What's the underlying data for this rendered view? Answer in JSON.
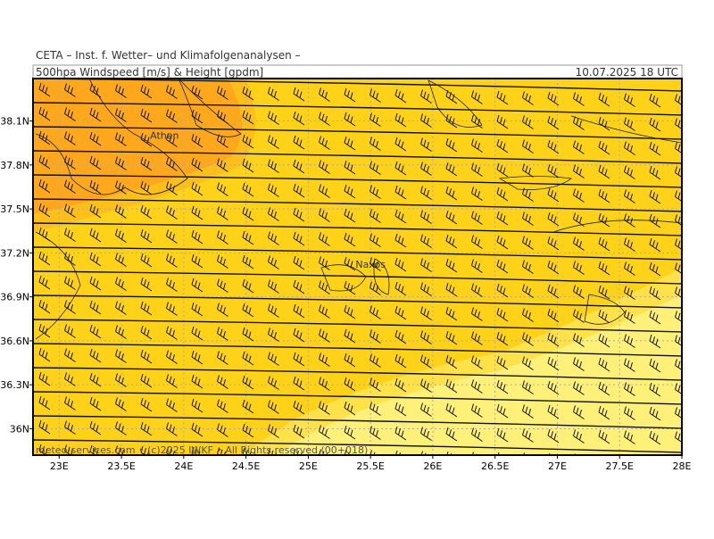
{
  "header": {
    "institute": "CETA – Inst. f. Wetter– und Klimafolgenanalysen –",
    "product": "500hpa Windspeed [m/s] & Height [gpdm]",
    "valid": "10.07.2025 18 UTC"
  },
  "map": {
    "lon_range": [
      22.79,
      28
    ],
    "lat_range": [
      35.82,
      38.39
    ],
    "lat_ticks": [
      {
        "value": 38.1,
        "label": "38.1N"
      },
      {
        "value": 37.8,
        "label": "37.8N"
      },
      {
        "value": 37.5,
        "label": "37.5N"
      },
      {
        "value": 37.2,
        "label": "37.2N"
      },
      {
        "value": 36.9,
        "label": "36.9N"
      },
      {
        "value": 36.6,
        "label": "36.6N"
      },
      {
        "value": 36.3,
        "label": "36.3N"
      },
      {
        "value": 36,
        "label": "36N"
      }
    ],
    "lon_ticks": [
      {
        "value": 23,
        "label": "23E"
      },
      {
        "value": 23.5,
        "label": "23.5E"
      },
      {
        "value": 24,
        "label": "24E"
      },
      {
        "value": 24.5,
        "label": "24.5E"
      },
      {
        "value": 25,
        "label": "25E"
      },
      {
        "value": 25.5,
        "label": "25.5E"
      },
      {
        "value": 26,
        "label": "26E"
      },
      {
        "value": 26.5,
        "label": "26.5E"
      },
      {
        "value": 27,
        "label": "27E"
      },
      {
        "value": 27.5,
        "label": "27.5E"
      },
      {
        "value": 28,
        "label": "28E"
      }
    ],
    "places": [
      {
        "name": "Athen",
        "lon": 23.73,
        "lat": 37.98
      },
      {
        "name": "Naxos",
        "lon": 25.38,
        "lat": 37.1
      }
    ],
    "footer": "meteo-services.com • (c)2025 IWKF • All Rights reserved (00+018)"
  }
}
